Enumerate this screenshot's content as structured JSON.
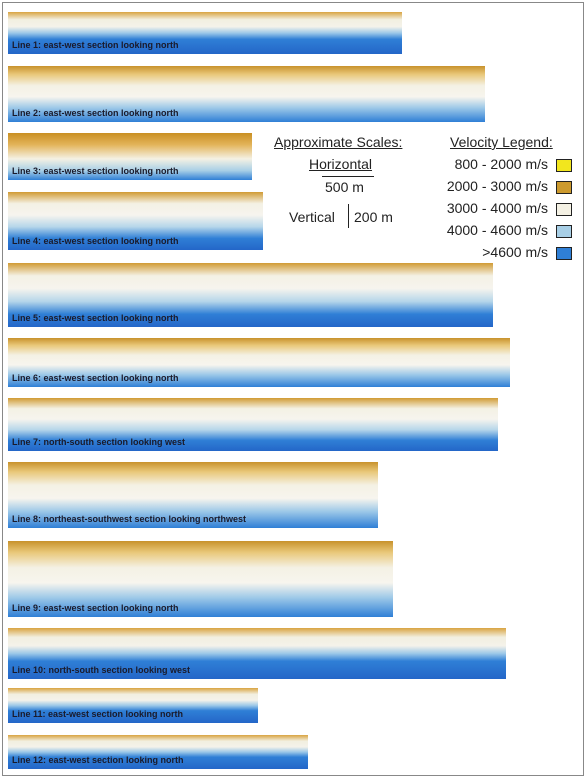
{
  "sections": [
    {
      "label": "Line 1: east-west section looking north"
    },
    {
      "label": "Line 2: east-west section looking north"
    },
    {
      "label": "Line 3: east-west section looking north"
    },
    {
      "label": "Line 4: east-west section looking north"
    },
    {
      "label": "Line 5: east-west section looking north"
    },
    {
      "label": "Line 6: east-west section looking north"
    },
    {
      "label": "Line 7: north-south section looking west"
    },
    {
      "label": "Line 8: northeast-southwest section looking northwest"
    },
    {
      "label": "Line 9: east-west section looking north"
    },
    {
      "label": "Line 10: north-south section looking west"
    },
    {
      "label": "Line 11: east-west section looking north"
    },
    {
      "label": "Line 12: east-west section looking north"
    }
  ],
  "scales": {
    "title": "Approximate Scales:",
    "horizontal": "Horizontal",
    "horizontal_bar": "500 m",
    "vertical": "Vertical",
    "vertical_bar": "200 m"
  },
  "legend": {
    "title": "Velocity Legend:",
    "items": [
      {
        "label": "800 - 2000 m/s",
        "color": "#f2e61e"
      },
      {
        "label": "2000 - 3000 m/s",
        "color": "#cc9a2e"
      },
      {
        "label": "3000 - 4000 m/s",
        "color": "#f4f1e4"
      },
      {
        "label": "4000 - 4600 m/s",
        "color": "#a8cfe6"
      },
      {
        "label": ">4600 m/s",
        "color": "#2f7fd6"
      }
    ]
  }
}
